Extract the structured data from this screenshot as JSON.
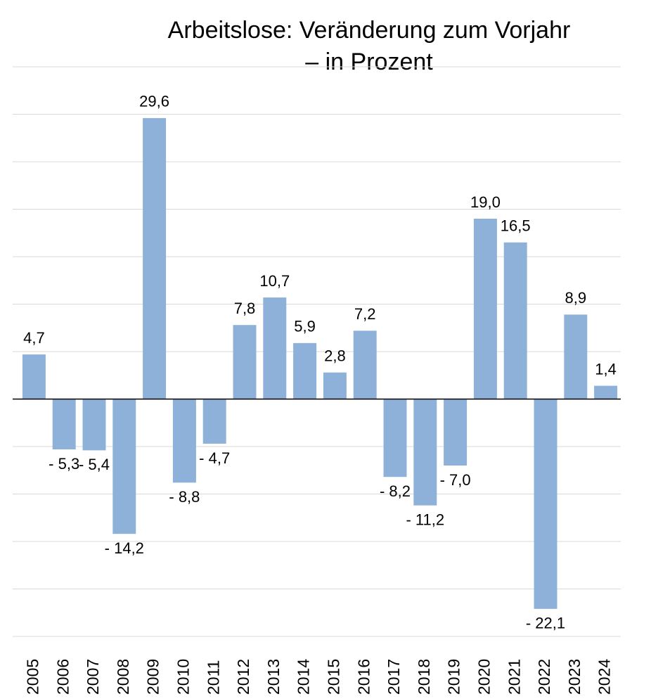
{
  "chart_data": {
    "type": "bar",
    "title": [
      "Arbeitslose: Veränderung zum Vorjahr",
      "– in Prozent"
    ],
    "categories": [
      "2005",
      "2006",
      "2007",
      "2008",
      "2009",
      "2010",
      "2011",
      "2012",
      "2013",
      "2014",
      "2015",
      "2016",
      "2017",
      "2018",
      "2019",
      "2020",
      "2021",
      "2022",
      "2023",
      "2024"
    ],
    "values": [
      4.7,
      -5.3,
      -5.4,
      -14.2,
      29.6,
      -8.8,
      -4.7,
      7.8,
      10.7,
      5.9,
      2.8,
      7.2,
      -8.2,
      -11.2,
      -7.0,
      19.0,
      16.5,
      -22.1,
      8.9,
      1.4
    ],
    "value_labels": [
      "4,7",
      "- 5,3",
      "- 5,4",
      "- 14,2",
      "29,6",
      "- 8,8",
      "- 4,7",
      "7,8",
      "10,7",
      "5,9",
      "2,8",
      "7,2",
      "- 8,2",
      "- 11,2",
      "- 7,0",
      "19,0",
      "16,5",
      "- 22,1",
      "8,9",
      "1,4"
    ],
    "color": "#8db1d8",
    "ylim": [
      -25,
      35
    ],
    "yticks": [
      -25,
      -20,
      -15,
      -10,
      -5,
      0,
      5,
      10,
      15,
      20,
      25,
      30,
      35
    ],
    "grid": true
  }
}
